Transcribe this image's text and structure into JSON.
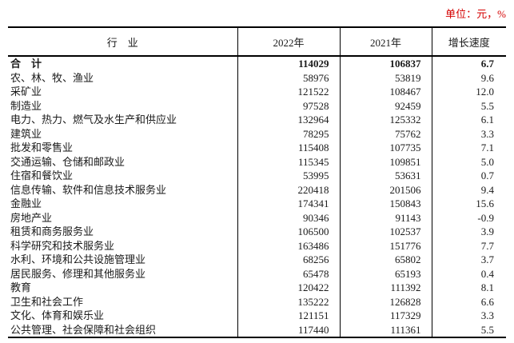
{
  "unit_label": "单位：元，%",
  "colors": {
    "unit_red": "#d40000",
    "text": "#1a1a1a",
    "border": "#000000"
  },
  "table": {
    "columns": [
      "行　业",
      "2022年",
      "2021年",
      "增长速度"
    ],
    "rows": [
      {
        "industry": "合　计",
        "y2022": "114029",
        "y2021": "106837",
        "growth": "6.7",
        "bold": true
      },
      {
        "industry": "农、林、牧、渔业",
        "y2022": "58976",
        "y2021": "53819",
        "growth": "9.6",
        "bold": false
      },
      {
        "industry": "采矿业",
        "y2022": "121522",
        "y2021": "108467",
        "growth": "12.0",
        "bold": false
      },
      {
        "industry": "制造业",
        "y2022": "97528",
        "y2021": "92459",
        "growth": "5.5",
        "bold": false
      },
      {
        "industry": "电力、热力、燃气及水生产和供应业",
        "y2022": "132964",
        "y2021": "125332",
        "growth": "6.1",
        "bold": false
      },
      {
        "industry": "建筑业",
        "y2022": "78295",
        "y2021": "75762",
        "growth": "3.3",
        "bold": false
      },
      {
        "industry": "批发和零售业",
        "y2022": "115408",
        "y2021": "107735",
        "growth": "7.1",
        "bold": false
      },
      {
        "industry": "交通运输、仓储和邮政业",
        "y2022": "115345",
        "y2021": "109851",
        "growth": "5.0",
        "bold": false
      },
      {
        "industry": "住宿和餐饮业",
        "y2022": "53995",
        "y2021": "53631",
        "growth": "0.7",
        "bold": false
      },
      {
        "industry": "信息传输、软件和信息技术服务业",
        "y2022": "220418",
        "y2021": "201506",
        "growth": "9.4",
        "bold": false
      },
      {
        "industry": "金融业",
        "y2022": "174341",
        "y2021": "150843",
        "growth": "15.6",
        "bold": false
      },
      {
        "industry": "房地产业",
        "y2022": "90346",
        "y2021": "91143",
        "growth": "-0.9",
        "bold": false
      },
      {
        "industry": "租赁和商务服务业",
        "y2022": "106500",
        "y2021": "102537",
        "growth": "3.9",
        "bold": false
      },
      {
        "industry": "科学研究和技术服务业",
        "y2022": "163486",
        "y2021": "151776",
        "growth": "7.7",
        "bold": false
      },
      {
        "industry": "水利、环境和公共设施管理业",
        "y2022": "68256",
        "y2021": "65802",
        "growth": "3.7",
        "bold": false
      },
      {
        "industry": "居民服务、修理和其他服务业",
        "y2022": "65478",
        "y2021": "65193",
        "growth": "0.4",
        "bold": false
      },
      {
        "industry": "教育",
        "y2022": "120422",
        "y2021": "111392",
        "growth": "8.1",
        "bold": false
      },
      {
        "industry": "卫生和社会工作",
        "y2022": "135222",
        "y2021": "126828",
        "growth": "6.6",
        "bold": false
      },
      {
        "industry": "文化、体育和娱乐业",
        "y2022": "121151",
        "y2021": "117329",
        "growth": "3.3",
        "bold": false
      },
      {
        "industry": "公共管理、社会保障和社会组织",
        "y2022": "117440",
        "y2021": "111361",
        "growth": "5.5",
        "bold": false
      }
    ]
  }
}
